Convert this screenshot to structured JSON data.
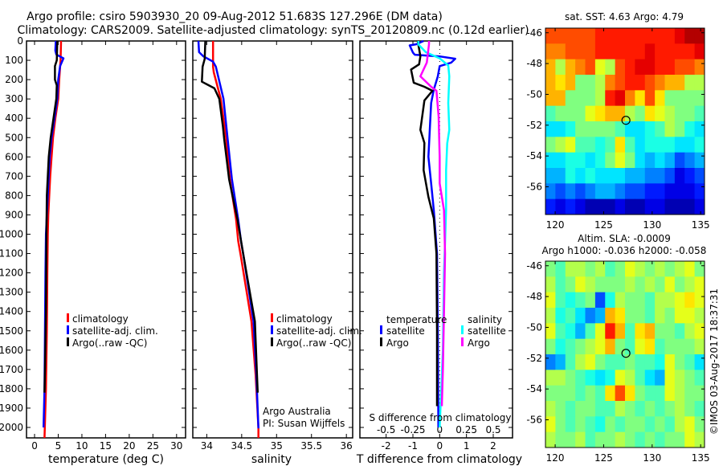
{
  "header": {
    "title_line1": "Argo profile: csiro 5903930_20 09-Aug-2012 51.683S 127.296E (DM data)",
    "title_line2": "Climatology: CARS2009. Satellite-adjusted climatology: synTS_20120809.nc (0.12d earlier)"
  },
  "credit": "©IMOS 03-Aug-2017 18:37:31",
  "colors": {
    "climatology": "#ff0000",
    "satellite": "#0000ff",
    "argo": "#000000",
    "s_satellite": "#00ffff",
    "s_argo": "#ff00ff"
  },
  "chart_data": [
    {
      "type": "line",
      "name": "temperature-profile",
      "xlabel": "temperature (deg C)",
      "ylabel": "depth",
      "xlim": [
        -1.7,
        31.9
      ],
      "ylim": [
        2054,
        0
      ],
      "xticks": [
        0,
        5,
        10,
        15,
        20,
        25,
        30
      ],
      "yticks": [
        0,
        100,
        200,
        300,
        400,
        500,
        600,
        700,
        800,
        900,
        1000,
        1100,
        1200,
        1300,
        1400,
        1500,
        1600,
        1700,
        1800,
        1900,
        2000
      ],
      "legend": [
        "climatology",
        "satellite-adj. clim.",
        "Argo(..raw -QC)"
      ],
      "series": [
        {
          "name": "climatology",
          "color": "#ff0000",
          "depth": [
            0,
            100,
            200,
            300,
            400,
            500,
            600,
            700,
            800,
            900,
            1000,
            1200,
            1500,
            1800,
            2054
          ],
          "values": [
            5.6,
            5.5,
            5.2,
            5.0,
            4.4,
            3.9,
            3.6,
            3.3,
            3.1,
            2.9,
            2.8,
            2.7,
            2.6,
            2.4,
            2.1
          ]
        },
        {
          "name": "satellite-adj. clim.",
          "color": "#0000ff",
          "depth": [
            0,
            50,
            70,
            90,
            130,
            200,
            300,
            400,
            500,
            600,
            700,
            800,
            900,
            1000,
            1200,
            1500,
            1800,
            2000
          ],
          "values": [
            4.5,
            4.4,
            4.6,
            6.1,
            5.4,
            5.0,
            4.8,
            4.2,
            3.6,
            3.2,
            3.0,
            2.8,
            2.6,
            2.4,
            2.3,
            2.2,
            2.1,
            1.9
          ]
        },
        {
          "name": "Argo",
          "color": "#000000",
          "depth": [
            0,
            100,
            130,
            200,
            230,
            300,
            400,
            500,
            600,
            700,
            800,
            1000,
            1400,
            1700,
            1820
          ],
          "values": [
            4.8,
            4.7,
            4.3,
            4.3,
            4.7,
            4.6,
            4.0,
            3.4,
            3.0,
            2.8,
            2.6,
            2.5,
            2.4,
            2.2,
            2.1
          ]
        }
      ]
    },
    {
      "type": "line",
      "name": "salinity-profile",
      "xlabel": "salinity",
      "xlim": [
        33.8,
        36.09
      ],
      "ylim": [
        2054,
        0
      ],
      "xticks": [
        34,
        34.5,
        35,
        35.5,
        36
      ],
      "legend": [
        "climatology",
        "satellite-adj. clim.",
        "Argo(..raw -QC)"
      ],
      "annotation": [
        "Argo Australia",
        "PI: Susan Wijffels"
      ],
      "series": [
        {
          "name": "climatology",
          "color": "#ff0000",
          "depth": [
            0,
            133,
            162,
            300,
            508,
            716,
            924,
            1035,
            1118,
            1451,
            1728,
            2005,
            2054
          ],
          "values": [
            34.09,
            34.09,
            34.1,
            34.2,
            34.28,
            34.33,
            34.42,
            34.45,
            34.49,
            34.64,
            34.7,
            34.74,
            34.74
          ]
        },
        {
          "name": "satellite-adj. clim.",
          "color": "#0000ff",
          "depth": [
            0,
            58,
            79,
            107,
            133,
            300,
            508,
            716,
            924,
            1035,
            1118,
            1451,
            1728,
            2005
          ],
          "values": [
            33.88,
            33.89,
            33.95,
            34.09,
            34.13,
            34.24,
            34.3,
            34.36,
            34.45,
            34.49,
            34.53,
            34.67,
            34.71,
            34.74
          ]
        },
        {
          "name": "Argo",
          "color": "#000000",
          "depth": [
            0,
            93,
            133,
            211,
            224,
            245,
            300,
            440,
            508,
            716,
            924,
            1118,
            1451,
            1728,
            1820
          ],
          "values": [
            33.98,
            33.97,
            33.94,
            33.93,
            34.0,
            34.11,
            34.18,
            34.23,
            34.25,
            34.32,
            34.44,
            34.53,
            34.69,
            34.72,
            34.73
          ]
        }
      ]
    },
    {
      "type": "line",
      "name": "difference-profile",
      "xlabel": "T difference from climatology",
      "x2label": "S difference from climatology",
      "xlim": [
        -2.98,
        2.72
      ],
      "xticks": [
        -2,
        -1,
        0,
        1,
        2
      ],
      "x2ticks": [
        -0.5,
        -0.25,
        0,
        0.25,
        0.5
      ],
      "legend": {
        "temperature_title": "temperature",
        "salinity_title": "salinity",
        "items": [
          "satellite",
          "Argo",
          "satellite",
          "Argo"
        ]
      },
      "series": [
        {
          "name": "T satellite",
          "color": "#0000ff",
          "quantity": "T",
          "depth": [
            0,
            17,
            23,
            60,
            71,
            80,
            92,
            112,
            130,
            183,
            252,
            321,
            460,
            599,
            737,
            876,
            1100,
            1500,
            2000
          ],
          "values": [
            -0.6,
            -0.88,
            -1.12,
            -1.0,
            -0.93,
            0,
            0.58,
            0.43,
            0,
            -0.07,
            -0.22,
            -0.32,
            -0.37,
            -0.42,
            -0.32,
            -0.22,
            -0.1,
            -0.07,
            -0.05
          ]
        },
        {
          "name": "T Argo",
          "color": "#000000",
          "quantity": "T",
          "depth": [
            0,
            79,
            121,
            148,
            216,
            237,
            258,
            308,
            460,
            528,
            668,
            807,
            918,
            1100,
            1500,
            1890
          ],
          "values": [
            -0.82,
            -0.72,
            -0.77,
            -1.07,
            -0.97,
            -0.57,
            -0.27,
            -0.57,
            -0.72,
            -0.57,
            -0.6,
            -0.42,
            -0.22,
            -0.12,
            -0.1,
            -0.1
          ]
        },
        {
          "name": "S satellite",
          "color": "#00ffff",
          "quantity": "S",
          "depth": [
            0,
            17,
            58,
            90,
            127,
            183,
            321,
            460,
            530,
            668,
            876,
            1200,
            1600,
            2000
          ],
          "values": [
            -0.2,
            -0.2,
            -0.13,
            0,
            0.08,
            0.09,
            0.08,
            0.09,
            0.07,
            0.06,
            0.06,
            0.04,
            0.03,
            0.0
          ]
        },
        {
          "name": "S Argo",
          "color": "#ff00ff",
          "quantity": "S",
          "depth": [
            0,
            17,
            112,
            183,
            237,
            258,
            391,
            599,
            737,
            876,
            1100,
            1400,
            1700,
            1890
          ],
          "values": [
            -0.1,
            -0.1,
            -0.12,
            -0.18,
            -0.08,
            -0.03,
            -0.01,
            0,
            0,
            0.04,
            0.05,
            0.04,
            0.03,
            0.02
          ]
        }
      ]
    },
    {
      "type": "heatmap",
      "name": "sst-map",
      "title": "sat. SST: 4.63 Argo: 4.79",
      "xlim": [
        119.0,
        135.4
      ],
      "ylim": [
        -57.8,
        -45.7
      ],
      "xticks": [
        120,
        125,
        130,
        135
      ],
      "yticks": [
        -46,
        -48,
        -50,
        -52,
        -54,
        -56
      ],
      "marker": {
        "lon": 127.296,
        "lat": -51.683
      },
      "colorscale": "jet",
      "value_range": [
        0,
        1
      ],
      "values": [
        [
          0.8,
          0.8,
          0.8,
          0.8,
          0.8,
          0.85,
          0.85,
          0.85,
          0.85,
          0.85,
          0.85,
          0.85,
          0.85,
          0.9,
          0.95,
          0.95
        ],
        [
          0.75,
          0.75,
          0.8,
          0.8,
          0.8,
          0.85,
          0.85,
          0.85,
          0.85,
          0.85,
          0.9,
          0.85,
          0.85,
          0.85,
          0.85,
          0.9
        ],
        [
          0.7,
          0.55,
          0.7,
          0.75,
          0.8,
          0.6,
          0.55,
          0.8,
          0.85,
          0.9,
          0.9,
          0.85,
          0.85,
          0.8,
          0.8,
          0.75
        ],
        [
          0.7,
          0.65,
          0.7,
          0.5,
          0.5,
          0.55,
          0.75,
          0.8,
          0.85,
          0.85,
          0.8,
          0.75,
          0.7,
          0.7,
          0.55,
          0.55
        ],
        [
          0.7,
          0.7,
          0.5,
          0.5,
          0.5,
          0.55,
          0.85,
          0.9,
          0.75,
          0.65,
          0.8,
          0.65,
          0.5,
          0.5,
          0.5,
          0.5
        ],
        [
          0.45,
          0.5,
          0.5,
          0.5,
          0.6,
          0.65,
          0.7,
          0.7,
          0.55,
          0.5,
          0.65,
          0.6,
          0.55,
          0.5,
          0.5,
          0.45
        ],
        [
          0.35,
          0.35,
          0.4,
          0.5,
          0.5,
          0.5,
          0.5,
          0.45,
          0.35,
          0.35,
          0.4,
          0.45,
          0.55,
          0.5,
          0.4,
          0.35
        ],
        [
          0.5,
          0.55,
          0.6,
          0.45,
          0.45,
          0.4,
          0.45,
          0.65,
          0.45,
          0.35,
          0.4,
          0.4,
          0.4,
          0.35,
          0.35,
          0.4
        ],
        [
          0.35,
          0.35,
          0.4,
          0.4,
          0.35,
          0.4,
          0.5,
          0.6,
          0.5,
          0.35,
          0.3,
          0.35,
          0.3,
          0.2,
          0.25,
          0.3
        ],
        [
          0.3,
          0.3,
          0.4,
          0.35,
          0.4,
          0.35,
          0.35,
          0.35,
          0.3,
          0.3,
          0.25,
          0.25,
          0.2,
          0.1,
          0.15,
          0.2
        ],
        [
          0.25,
          0.2,
          0.25,
          0.2,
          0.25,
          0.3,
          0.3,
          0.25,
          0.2,
          0.2,
          0.15,
          0.15,
          0.1,
          0.1,
          0.1,
          0.15
        ],
        [
          0.15,
          0.1,
          0.15,
          0.1,
          0.05,
          0.05,
          0.05,
          0.1,
          0.05,
          0.05,
          0.1,
          0.1,
          0.05,
          0.05,
          0.05,
          0.1
        ]
      ]
    },
    {
      "type": "heatmap",
      "name": "sla-map",
      "title": "Altim. SLA: -0.0009",
      "subtitle": "Argo h1000: -0.036 h2000: -0.058",
      "xlim": [
        119.0,
        135.4
      ],
      "ylim": [
        -57.8,
        -45.7
      ],
      "xticks": [
        120,
        125,
        130,
        135
      ],
      "yticks": [
        -46,
        -48,
        -50,
        -52,
        -54,
        -56
      ],
      "marker": {
        "lon": 127.296,
        "lat": -51.683
      },
      "colorscale": "jet",
      "value_range": [
        0,
        1
      ],
      "values": [
        [
          0.5,
          0.45,
          0.55,
          0.55,
          0.5,
          0.55,
          0.45,
          0.5,
          0.6,
          0.55,
          0.5,
          0.55,
          0.5,
          0.55,
          0.6,
          0.5
        ],
        [
          0.55,
          0.45,
          0.5,
          0.6,
          0.55,
          0.5,
          0.5,
          0.5,
          0.55,
          0.5,
          0.55,
          0.5,
          0.6,
          0.5,
          0.55,
          0.6
        ],
        [
          0.6,
          0.45,
          0.4,
          0.45,
          0.5,
          0.2,
          0.4,
          0.55,
          0.5,
          0.5,
          0.45,
          0.55,
          0.55,
          0.6,
          0.65,
          0.6
        ],
        [
          0.55,
          0.4,
          0.45,
          0.35,
          0.25,
          0.3,
          0.7,
          0.65,
          0.5,
          0.5,
          0.45,
          0.55,
          0.5,
          0.6,
          0.6,
          0.55
        ],
        [
          0.6,
          0.45,
          0.4,
          0.3,
          0.45,
          0.6,
          0.85,
          0.7,
          0.45,
          0.65,
          0.7,
          0.5,
          0.5,
          0.45,
          0.55,
          0.6
        ],
        [
          0.5,
          0.4,
          0.45,
          0.5,
          0.55,
          0.6,
          0.7,
          0.5,
          0.45,
          0.6,
          0.65,
          0.45,
          0.5,
          0.5,
          0.5,
          0.55
        ],
        [
          0.25,
          0.3,
          0.45,
          0.55,
          0.6,
          0.5,
          0.45,
          0.45,
          0.5,
          0.45,
          0.45,
          0.4,
          0.6,
          0.5,
          0.45,
          0.35
        ],
        [
          0.55,
          0.55,
          0.5,
          0.45,
          0.4,
          0.35,
          0.4,
          0.6,
          0.55,
          0.45,
          0.35,
          0.3,
          0.6,
          0.55,
          0.5,
          0.45
        ],
        [
          0.5,
          0.5,
          0.5,
          0.45,
          0.5,
          0.45,
          0.65,
          0.8,
          0.65,
          0.5,
          0.45,
          0.45,
          0.6,
          0.55,
          0.5,
          0.5
        ],
        [
          0.55,
          0.5,
          0.45,
          0.5,
          0.5,
          0.45,
          0.45,
          0.55,
          0.5,
          0.45,
          0.5,
          0.45,
          0.5,
          0.55,
          0.5,
          0.45
        ],
        [
          0.6,
          0.5,
          0.45,
          0.5,
          0.45,
          0.4,
          0.5,
          0.45,
          0.5,
          0.5,
          0.45,
          0.5,
          0.45,
          0.55,
          0.6,
          0.5
        ],
        [
          0.55,
          0.5,
          0.5,
          0.55,
          0.45,
          0.5,
          0.5,
          0.55,
          0.5,
          0.45,
          0.5,
          0.45,
          0.5,
          0.5,
          0.6,
          0.55
        ]
      ]
    }
  ]
}
